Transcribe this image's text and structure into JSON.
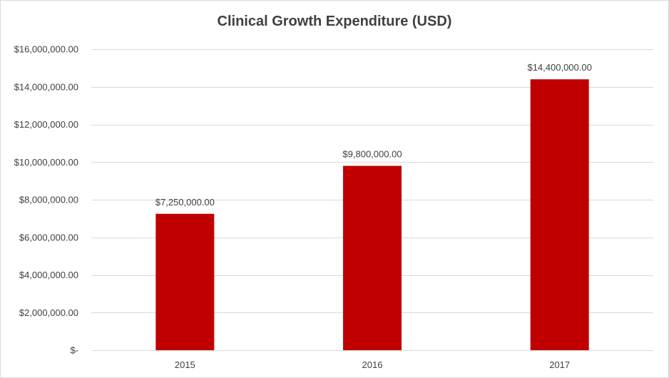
{
  "chart_data": {
    "type": "bar",
    "title": "Clinical Growth Expenditure (USD)",
    "categories": [
      "2015",
      "2016",
      "2017"
    ],
    "values": [
      7250000,
      9800000,
      14400000
    ],
    "data_labels": [
      "$7,250,000.00",
      "$9,800,000.00",
      "$14,400,000.00"
    ],
    "ylim": [
      0,
      16000000
    ],
    "y_ticks": [
      0,
      2000000,
      4000000,
      6000000,
      8000000,
      10000000,
      12000000,
      14000000,
      16000000
    ],
    "y_tick_labels": [
      "$-",
      "$2,000,000.00",
      "$4,000,000.00",
      "$6,000,000.00",
      "$8,000,000.00",
      "$10,000,000.00",
      "$12,000,000.00",
      "$14,000,000.00",
      "$16,000,000.00"
    ],
    "xlabel": "",
    "ylabel": "",
    "grid": true,
    "legend": "none",
    "bar_color": "#c00000",
    "gridline_color": "#d9d9d9"
  }
}
